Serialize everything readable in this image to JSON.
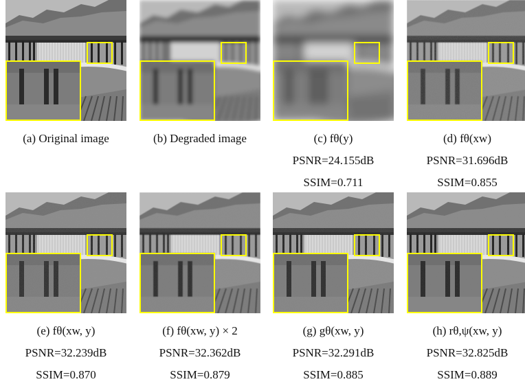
{
  "figure": {
    "rows": [
      {
        "panels": [
          {
            "id": "a",
            "label": "(a) Original image",
            "psnr": "",
            "ssim": "",
            "blur": 0,
            "noise": 0
          },
          {
            "id": "b",
            "label": "(b) Degraded image",
            "psnr": "",
            "ssim": "",
            "blur": 3,
            "noise": 0
          },
          {
            "id": "c",
            "label": "(c) fθ(y)",
            "psnr": "PSNR=24.155dB",
            "ssim": "SSIM=0.711",
            "blur": 6,
            "noise": 0
          },
          {
            "id": "d",
            "label": "(d) fθ(xw)",
            "psnr": "PSNR=31.696dB",
            "ssim": "SSIM=0.855",
            "blur": 0.4,
            "noise": 1
          }
        ]
      },
      {
        "panels": [
          {
            "id": "e",
            "label": "(e) fθ(xw, y)",
            "psnr": "PSNR=32.239dB",
            "ssim": "SSIM=0.870",
            "blur": 0.3,
            "noise": 0.6
          },
          {
            "id": "f",
            "label": "(f) fθ(xw, y) × 2",
            "psnr": "PSNR=32.362dB",
            "ssim": "SSIM=0.879",
            "blur": 0.5,
            "noise": 0.4
          },
          {
            "id": "g",
            "label": "(g) gθ(xw, y)",
            "psnr": "PSNR=32.291dB",
            "ssim": "SSIM=0.885",
            "blur": 0.3,
            "noise": 0.4
          },
          {
            "id": "h",
            "label": "(h) rθ,ψ(xw, y)",
            "psnr": "PSNR=32.825dB",
            "ssim": "SSIM=0.889",
            "blur": 0.2,
            "noise": 0.2
          }
        ]
      }
    ],
    "highlight_color": "#ffff00"
  }
}
